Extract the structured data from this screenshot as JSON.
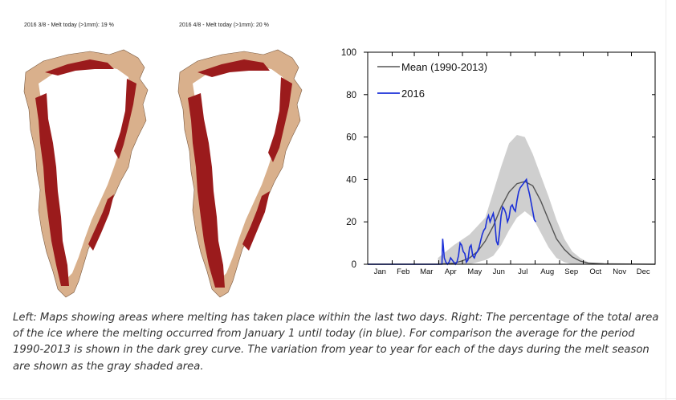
{
  "maps": [
    {
      "title": "2016 3/8  -  Melt today (>1mm): 19 %"
    },
    {
      "title": "2016 4/8  -  Melt today (>1mm): 20 %"
    }
  ],
  "colors": {
    "melt": "#9b1b1c",
    "bare_land": "#d9b08c",
    "ice": "#ffffff",
    "mean_line": "#555555",
    "line_2016": "#1a2fd8",
    "band": "#cfcfcf"
  },
  "chart_data": {
    "type": "line",
    "ylim": [
      0,
      100
    ],
    "yticks": [
      0,
      20,
      40,
      60,
      80,
      100
    ],
    "xlim": [
      1,
      365
    ],
    "xtick_labels": [
      "Jan",
      "Feb",
      "Mar",
      "Apr",
      "May",
      "Jun",
      "Jul",
      "Aug",
      "Sep",
      "Oct",
      "Nov",
      "Dec"
    ],
    "legend_position": "top-left",
    "series": [
      {
        "name": "Mean (1990-2013)",
        "color": "#555555",
        "x": [
          1,
          90,
          110,
          120,
          130,
          140,
          150,
          160,
          170,
          180,
          190,
          200,
          210,
          220,
          230,
          240,
          250,
          260,
          270,
          280,
          300,
          365
        ],
        "y": [
          0,
          0,
          0.5,
          1.5,
          3,
          6,
          11,
          18,
          27,
          34,
          38,
          39,
          37,
          30,
          21,
          12,
          7,
          3.5,
          1.5,
          0.6,
          0.2,
          0
        ]
      },
      {
        "name": "2016",
        "color": "#1a2fd8",
        "x": [
          1,
          95,
          96,
          98,
          100,
          102,
          104,
          106,
          108,
          110,
          112,
          114,
          116,
          118,
          120,
          122,
          124,
          126,
          128,
          130,
          132,
          134,
          136,
          138,
          140,
          142,
          144,
          146,
          148,
          150,
          152,
          154,
          156,
          158,
          160,
          162,
          164,
          166,
          168,
          170,
          172,
          174,
          176,
          178,
          180,
          182,
          184,
          186,
          188,
          190,
          192,
          194,
          196,
          198,
          200,
          202,
          204,
          206,
          208,
          210,
          212,
          214
        ],
        "y": [
          0,
          0,
          12,
          3,
          1,
          0,
          1,
          3,
          2,
          1,
          0,
          1,
          4,
          10,
          9,
          6,
          5,
          1,
          2,
          8,
          9,
          4,
          3,
          5,
          6,
          8,
          11,
          14,
          16,
          17,
          21,
          23,
          20,
          22,
          24,
          20,
          11,
          9,
          15,
          23,
          27,
          26,
          24,
          20,
          22,
          27,
          28,
          26,
          25,
          30,
          34,
          36,
          37,
          38,
          39,
          40,
          36,
          33,
          29,
          25,
          21,
          20
        ]
      }
    ],
    "band": {
      "name": "year-to-year variation",
      "x": [
        90,
        110,
        130,
        150,
        160,
        170,
        180,
        190,
        200,
        210,
        220,
        230,
        240,
        250,
        260,
        270,
        280,
        290
      ],
      "lower": [
        0,
        0,
        0,
        2,
        4,
        9,
        16,
        22,
        25,
        22,
        15,
        8,
        3,
        1,
        0,
        0,
        0,
        0
      ],
      "upper": [
        3,
        9,
        14,
        22,
        34,
        46,
        57,
        61,
        60,
        52,
        42,
        32,
        21,
        12,
        6,
        3,
        1,
        0
      ]
    }
  },
  "caption": "Left: Maps showing areas where melting has taken place within the last two days. Right: The percentage of the total area of the ice where the melting occurred from January 1 until today (in blue). For comparison the average for the period 1990-2013 is shown in the dark grey curve. The variation from year to year for each of the days during the melt season are shown as the gray shaded area."
}
